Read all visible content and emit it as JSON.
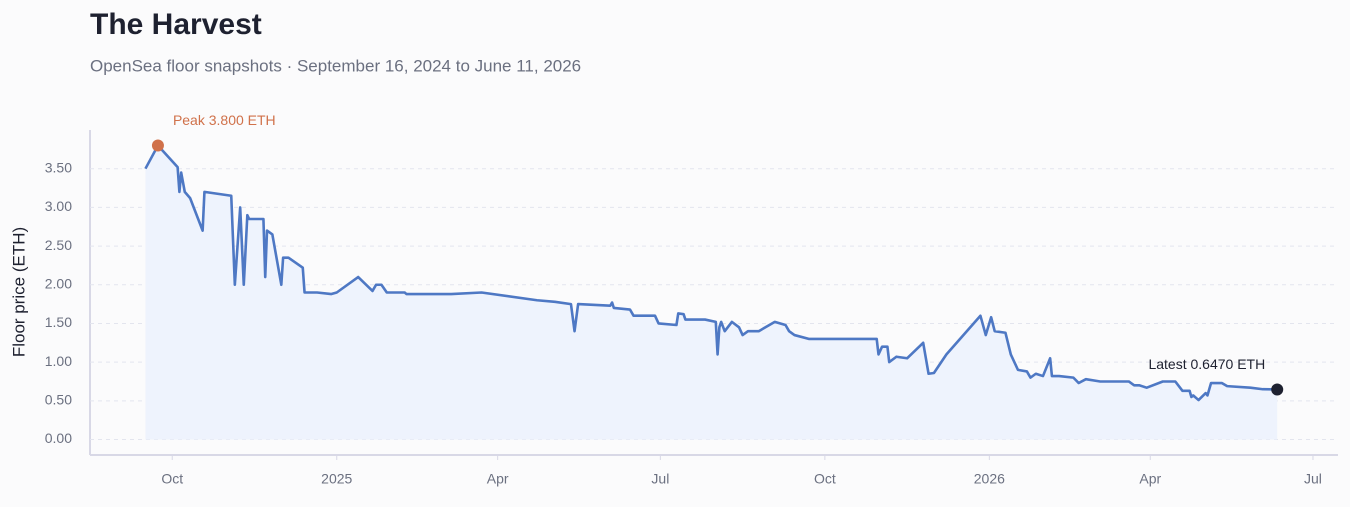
{
  "chart_data": {
    "type": "line",
    "title": "The Harvest",
    "subtitle": "OpenSea floor snapshots · September 16, 2024 to June 11, 2026",
    "y_label": "Floor price (ETH)",
    "peak_label": "Peak 3.800 ETH",
    "latest_label": "Latest 0.6470 ETH",
    "color": "#4e78c4",
    "fill_color": "#eef3fd",
    "peak_color": "#d0714a",
    "latest_color": "#1e2130",
    "grid": true,
    "xlim": [
      "2024-08-16",
      "2026-07-15"
    ],
    "xticks": [
      {
        "value": "2024-10-01",
        "label": "Oct"
      },
      {
        "value": "2025-01-01",
        "label": "2025"
      },
      {
        "value": "2025-04-01",
        "label": "Apr"
      },
      {
        "value": "2025-07-01",
        "label": "Jul"
      },
      {
        "value": "2025-10-01",
        "label": "Oct"
      },
      {
        "value": "2026-01-01",
        "label": "2026"
      },
      {
        "value": "2026-04-01",
        "label": "Apr"
      },
      {
        "value": "2026-07-01",
        "label": "Jul"
      }
    ],
    "ylim": [
      -0.2,
      4.0
    ],
    "yticks": [
      {
        "value": 0,
        "label": "0.00"
      },
      {
        "value": 0.5,
        "label": "0.50"
      },
      {
        "value": 1,
        "label": "1.00"
      },
      {
        "value": 1.5,
        "label": "1.50"
      },
      {
        "value": 2,
        "label": "2.00"
      },
      {
        "value": 2.5,
        "label": "2.50"
      },
      {
        "value": 3,
        "label": "3.00"
      },
      {
        "value": 3.5,
        "label": "3.50"
      }
    ],
    "x": [
      "2024-09-16",
      "2024-09-23",
      "2024-10-04",
      "2024-10-05",
      "2024-10-06",
      "2024-10-08",
      "2024-10-11",
      "2024-10-18",
      "2024-10-19",
      "2024-11-03",
      "2024-11-05",
      "2024-11-08",
      "2024-11-10",
      "2024-11-12",
      "2024-11-13",
      "2024-11-20",
      "2024-11-21",
      "2024-11-22",
      "2024-11-23",
      "2024-11-26",
      "2024-12-01",
      "2024-12-02",
      "2024-12-05",
      "2024-12-13",
      "2024-12-14",
      "2024-12-21",
      "2024-12-29",
      "2025-01-01",
      "2025-01-13",
      "2025-01-21",
      "2025-01-23",
      "2025-01-26",
      "2025-01-29",
      "2025-02-08",
      "2025-02-09",
      "2025-03-06",
      "2025-03-23",
      "2025-04-23",
      "2025-05-03",
      "2025-05-12",
      "2025-05-14",
      "2025-05-16",
      "2025-06-03",
      "2025-06-04",
      "2025-06-05",
      "2025-06-14",
      "2025-06-16",
      "2025-06-28",
      "2025-06-30",
      "2025-07-10",
      "2025-07-11",
      "2025-07-14",
      "2025-07-15",
      "2025-07-26",
      "2025-08-01",
      "2025-08-02",
      "2025-08-03",
      "2025-08-04",
      "2025-08-06",
      "2025-08-10",
      "2025-08-14",
      "2025-08-16",
      "2025-08-19",
      "2025-08-25",
      "2025-09-03",
      "2025-09-09",
      "2025-09-11",
      "2025-09-14",
      "2025-09-22",
      "2025-10-30",
      "2025-10-31",
      "2025-11-02",
      "2025-11-05",
      "2025-11-06",
      "2025-11-10",
      "2025-11-16",
      "2025-11-25",
      "2025-11-28",
      "2025-12-01",
      "2025-12-08",
      "2025-12-27",
      "2025-12-30",
      "2026-01-02",
      "2026-01-04",
      "2026-01-10",
      "2026-01-13",
      "2026-01-17",
      "2026-01-22",
      "2026-01-24",
      "2026-01-27",
      "2026-01-31",
      "2026-02-04",
      "2026-02-05",
      "2026-02-09",
      "2026-02-17",
      "2026-02-20",
      "2026-02-24",
      "2026-03-04",
      "2026-03-20",
      "2026-03-23",
      "2026-03-26",
      "2026-03-30",
      "2026-04-08",
      "2026-04-15",
      "2026-04-19",
      "2026-04-23",
      "2026-04-24",
      "2026-04-25",
      "2026-04-28",
      "2026-05-02",
      "2026-05-03",
      "2026-05-05",
      "2026-05-11",
      "2026-05-14",
      "2026-05-27",
      "2026-06-03",
      "2026-06-11"
    ],
    "values": [
      3.5,
      3.8,
      3.52,
      3.2,
      3.45,
      3.2,
      3.12,
      2.7,
      3.2,
      3.15,
      2.0,
      3.0,
      2.0,
      2.9,
      2.85,
      2.85,
      2.85,
      2.1,
      2.7,
      2.65,
      2.0,
      2.35,
      2.35,
      2.22,
      1.9,
      1.9,
      1.88,
      1.9,
      2.1,
      1.92,
      2.0,
      2.0,
      1.9,
      1.9,
      1.88,
      1.88,
      1.9,
      1.8,
      1.78,
      1.75,
      1.4,
      1.75,
      1.73,
      1.77,
      1.7,
      1.68,
      1.6,
      1.6,
      1.5,
      1.48,
      1.63,
      1.62,
      1.55,
      1.55,
      1.52,
      1.1,
      1.45,
      1.52,
      1.4,
      1.52,
      1.45,
      1.35,
      1.4,
      1.4,
      1.52,
      1.48,
      1.4,
      1.35,
      1.3,
      1.3,
      1.1,
      1.2,
      1.2,
      1.0,
      1.07,
      1.05,
      1.25,
      0.85,
      0.86,
      1.1,
      1.6,
      1.35,
      1.58,
      1.4,
      1.38,
      1.1,
      0.9,
      0.88,
      0.8,
      0.85,
      0.82,
      1.05,
      0.82,
      0.82,
      0.8,
      0.73,
      0.78,
      0.75,
      0.75,
      0.7,
      0.7,
      0.67,
      0.75,
      0.75,
      0.63,
      0.63,
      0.55,
      0.57,
      0.51,
      0.6,
      0.57,
      0.73,
      0.73,
      0.69,
      0.67,
      0.65,
      0.647
    ]
  }
}
